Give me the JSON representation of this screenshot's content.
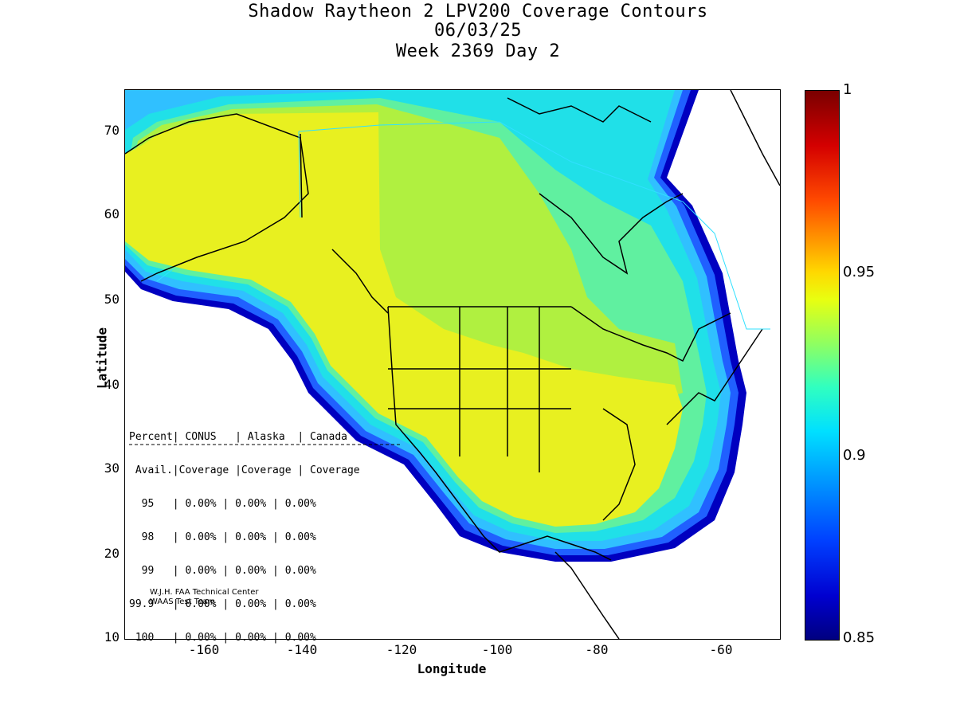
{
  "title": {
    "line1": "Shadow Raytheon 2 LPV200 Coverage Contours",
    "line2": "06/03/25",
    "line3": "Week 2369 Day 2"
  },
  "axes": {
    "xlabel": "Longitude",
    "ylabel": "Latitude",
    "xticks": [
      "-160",
      "-140",
      "-120",
      "-100",
      "-80",
      "-60"
    ],
    "yticks": [
      "70",
      "60",
      "50",
      "40",
      "30",
      "20",
      "10"
    ],
    "xlim": [
      -173,
      -50
    ],
    "ylim": [
      10,
      75
    ]
  },
  "colorbar": {
    "ticks": [
      "1",
      "0.95",
      "0.9",
      "0.85"
    ],
    "range": [
      0.85,
      1
    ]
  },
  "stats_table": {
    "header1": [
      "Percent",
      "CONUS",
      "Alaska",
      "Canada"
    ],
    "header2": [
      "Avail.",
      "Coverage",
      "Coverage",
      "Coverage"
    ],
    "rows": [
      [
        "95",
        "0.00%",
        "0.00%",
        "0.00%"
      ],
      [
        "98",
        "0.00%",
        "0.00%",
        "0.00%"
      ],
      [
        "99",
        "0.00%",
        "0.00%",
        "0.00%"
      ],
      [
        "99.9",
        "0.00%",
        "0.00%",
        "0.00%"
      ],
      [
        "100",
        "0.00%",
        "0.00%",
        "0.00%"
      ]
    ]
  },
  "credits": {
    "line1": "W.J.H. FAA Technical Center",
    "line2": "WAAS Test Team"
  },
  "colors": {
    "yellow": "#e8f020",
    "lime": "#b0f040",
    "green": "#60f0a0",
    "cyan": "#20e0e8",
    "sky": "#30c0ff",
    "blue": "#2060ff",
    "navy": "#0000c0"
  }
}
